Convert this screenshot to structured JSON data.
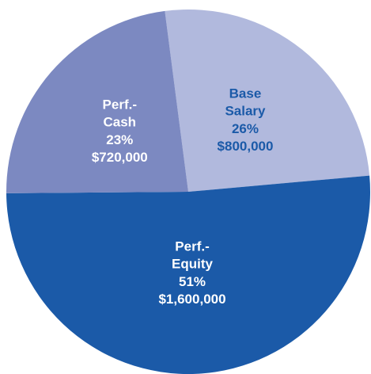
{
  "chart_data": {
    "type": "pie",
    "categories": [
      "Base\nSalary",
      "Perf.-\nEquity",
      "Perf.-\nCash"
    ],
    "values": [
      800000,
      1600000,
      720000
    ],
    "value_labels": [
      "$800,000",
      "$1,600,000",
      "$720,000"
    ],
    "percentages": [
      26,
      51,
      23
    ],
    "percentage_labels": [
      "26%",
      "51%",
      "23%"
    ],
    "colors": [
      "#b1b9dd",
      "#1b5aa8",
      "#7c89c1"
    ],
    "label_colors": [
      "#1b5aa8",
      "#ffffff",
      "#ffffff"
    ]
  }
}
